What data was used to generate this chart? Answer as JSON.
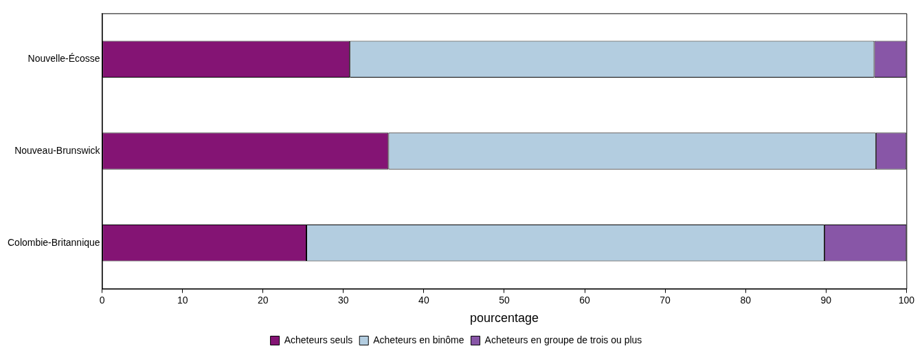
{
  "chart_data": {
    "type": "bar",
    "orientation": "horizontal",
    "stacked": true,
    "categories": [
      "Nouvelle-Écosse",
      "Nouveau-Brunswick",
      "Colombie-Britannique"
    ],
    "series": [
      {
        "name": "Acheteurs seuls",
        "color": "#841474",
        "values": [
          30.8,
          35.6,
          25.4
        ]
      },
      {
        "name": "Acheteurs en binôme",
        "color": "#b3cde0",
        "values": [
          65.2,
          60.6,
          64.4
        ]
      },
      {
        "name": "Acheteurs en groupe de trois ou plus",
        "color": "#8856a7",
        "values": [
          4.0,
          3.8,
          10.2
        ]
      }
    ],
    "xlabel": "pourcentage",
    "xlim": [
      0,
      100
    ],
    "xticks": [
      0,
      10,
      20,
      30,
      40,
      50,
      60,
      70,
      80,
      90,
      100
    ],
    "grid": false,
    "legend": "bottom"
  }
}
